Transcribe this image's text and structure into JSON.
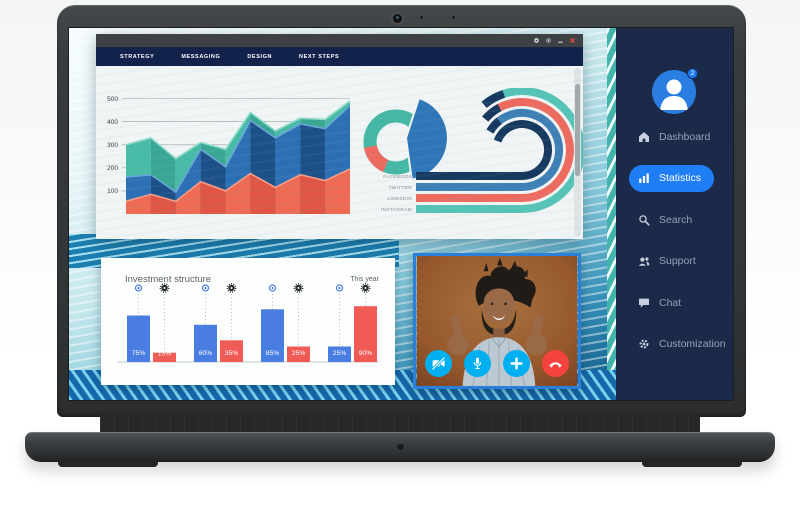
{
  "window": {
    "tabs": [
      "STRATEGY",
      "MESSAGING",
      "DESIGN",
      "NEXT STEPS"
    ],
    "controls": [
      {
        "name": "record",
        "color": "#d8dadc"
      },
      {
        "name": "settings",
        "color": "#d8dadc"
      },
      {
        "name": "minimize",
        "color": "#d8dadc"
      },
      {
        "name": "close",
        "color": "#e84c3d"
      }
    ]
  },
  "chart_data": [
    {
      "id": "layered-area-chart",
      "type": "area",
      "x": [
        1,
        2,
        3,
        4,
        5,
        6,
        7,
        8,
        9,
        10
      ],
      "series": [
        {
          "name": "teal",
          "colors": [
            "#48bba7",
            "#3aa794"
          ],
          "edge": "#8fdcc8",
          "values": [
            300,
            330,
            240,
            310,
            280,
            440,
            360,
            415,
            410,
            490
          ]
        },
        {
          "name": "blue",
          "colors": [
            "#2d6fb4",
            "#1d4f88"
          ],
          "edge": "#6aa7d8",
          "values": [
            160,
            170,
            95,
            280,
            205,
            405,
            330,
            390,
            370,
            470
          ]
        },
        {
          "name": "red",
          "colors": [
            "#ef6a52",
            "#e05544"
          ],
          "edge": "#f79c86",
          "values": [
            55,
            85,
            55,
            140,
            100,
            175,
            115,
            170,
            145,
            195
          ]
        }
      ],
      "yticks": [
        100,
        200,
        300,
        400,
        500
      ],
      "ylim": [
        0,
        520
      ],
      "grid": true
    },
    {
      "id": "share-donut",
      "type": "pie",
      "slices": [
        {
          "name": "blue",
          "value": 45,
          "color": "#2e76b8",
          "exploded": true
        },
        {
          "name": "teal",
          "value": 40,
          "color": "#45b7a4"
        },
        {
          "name": "red",
          "value": 15,
          "color": "#ee6a5e"
        }
      ]
    },
    {
      "id": "social-swirl",
      "type": "curved-bar",
      "categories": [
        "FACEBOOK",
        "TWITTER",
        "LINKEDIN",
        "INSTAGRAM"
      ],
      "colors": [
        "#17395f",
        "#3e7fb6",
        "#ef6a5e",
        "#55c3b5"
      ],
      "tip_color": "#17395f"
    },
    {
      "id": "investment-bars",
      "type": "bar",
      "title": "Investment structure",
      "annotation": "This year",
      "series": [
        {
          "name": "blue",
          "color": "#4a7de2",
          "values": [
            75,
            60,
            85,
            25
          ]
        },
        {
          "name": "red",
          "color": "#f05c55",
          "values": [
            15,
            35,
            25,
            90
          ]
        }
      ],
      "value_suffix": "%",
      "marker_colors": {
        "blue": "#4a7de2",
        "black": "#2b2e31"
      }
    }
  ],
  "video_call": {
    "buttons": [
      {
        "name": "camera-off",
        "color": "#00aff0"
      },
      {
        "name": "microphone",
        "color": "#00aff0"
      },
      {
        "name": "add",
        "color": "#00aff0"
      },
      {
        "name": "end-call",
        "color": "#f4433c"
      }
    ]
  },
  "sidebar": {
    "avatar_badge": "2",
    "accent": "#1f7ef5",
    "bg": "#1c2a4a",
    "items": [
      {
        "label": "Dashboard",
        "icon": "home",
        "active": false
      },
      {
        "label": "Statistics",
        "icon": "bar-chart",
        "active": true
      },
      {
        "label": "Search",
        "icon": "search",
        "active": false
      },
      {
        "label": "Support",
        "icon": "support",
        "active": false
      },
      {
        "label": "Chat",
        "icon": "chat",
        "active": false
      },
      {
        "label": "Customization",
        "icon": "gear",
        "active": false
      }
    ]
  },
  "colors": {
    "navbar": "#13224a",
    "titlebar": "#3e4144",
    "card_bg": "#fcfdfd",
    "pattern_teal": "#43b4ab",
    "pattern_blue": "#1668ab"
  }
}
